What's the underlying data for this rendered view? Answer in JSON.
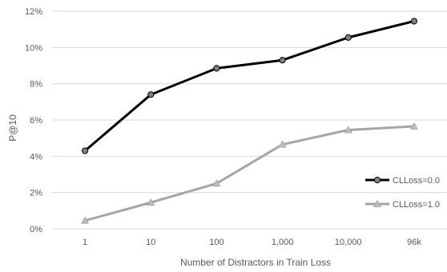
{
  "chart_data": {
    "type": "line",
    "categories": [
      "1",
      "10",
      "100",
      "1,000",
      "10,000",
      "96k"
    ],
    "series": [
      {
        "name": "CLLoss=0.0",
        "values": [
          4.3,
          7.4,
          8.85,
          9.3,
          10.55,
          11.45
        ],
        "color": "#000000",
        "marker": "circle"
      },
      {
        "name": "CLLoss=1.0",
        "values": [
          0.45,
          1.45,
          2.5,
          4.65,
          5.45,
          5.65
        ],
        "color": "#a6a6a6",
        "marker": "triangle"
      }
    ],
    "yticks": [
      "0%",
      "2%",
      "4%",
      "6%",
      "8%",
      "10%",
      "12%"
    ],
    "ylim": [
      0,
      12
    ],
    "xlabel": "Number of Distractors  in Train Loss",
    "ylabel": "P@10",
    "grid": true,
    "legend_position": "right"
  }
}
